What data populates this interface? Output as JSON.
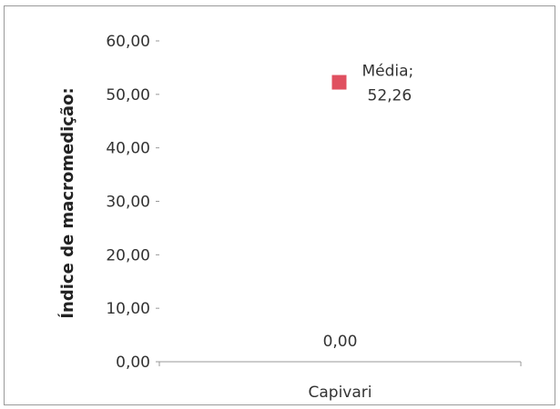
{
  "chart_data": {
    "type": "scatter",
    "title": "",
    "xlabel": "",
    "ylabel": "Índice de macromedição:",
    "categories": [
      "Capivari"
    ],
    "ylim": [
      0,
      60
    ],
    "y_ticks": [
      "0,00",
      "10,00",
      "20,00",
      "30,00",
      "40,00",
      "50,00",
      "60,00"
    ],
    "grid": false,
    "series": [
      {
        "name": "Média",
        "values": [
          52.26
        ],
        "color": "#e05060",
        "label": "Média;",
        "value_label": "52,26"
      }
    ],
    "annotations": [
      {
        "category": "Capivari",
        "value": 0,
        "text": "0,00"
      }
    ]
  }
}
